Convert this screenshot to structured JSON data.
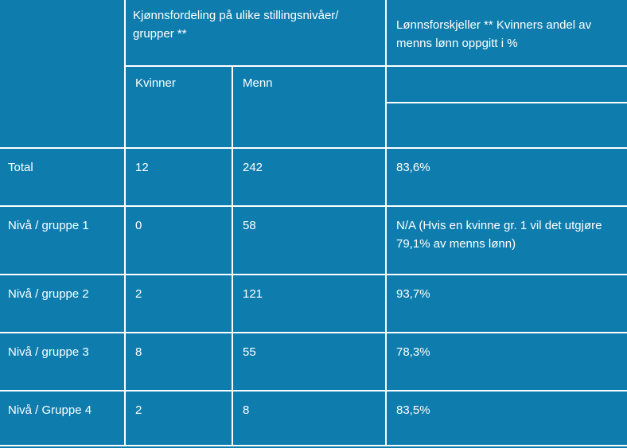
{
  "table": {
    "header": {
      "group_title": "Kjønnsfordeling på ulike stillingsnivåer/\ngrupper **",
      "pay_gap_title": "Lønnsforskjeller ** Kvinners andel av\nmenns lønn oppgitt i %",
      "sub_columns": {
        "women": "Kvinner",
        "men": "Menn"
      }
    },
    "rows": [
      {
        "label": "Total",
        "kvinner": "12",
        "menn": "242",
        "lonn": "83,6%"
      },
      {
        "label": "Nivå / gruppe 1",
        "kvinner": "0",
        "menn": "58",
        "lonn": "N/A (Hvis en kvinne gr. 1 vil det utgjøre\n79,1% av menns lønn)"
      },
      {
        "label": "Nivå / gruppe 2",
        "kvinner": "2",
        "menn": "121",
        "lonn": "93,7%"
      },
      {
        "label": "Nivå / gruppe 3",
        "kvinner": "8",
        "menn": "55",
        "lonn": "78,3%"
      },
      {
        "label": "Nivå / Gruppe 4",
        "kvinner": "2",
        "menn": "8",
        "lonn": "83,5%"
      }
    ],
    "colors": {
      "cell_background": "#0E7DAE",
      "grid_lines": "#FFFFFF",
      "text": "#FFFFFF"
    }
  }
}
